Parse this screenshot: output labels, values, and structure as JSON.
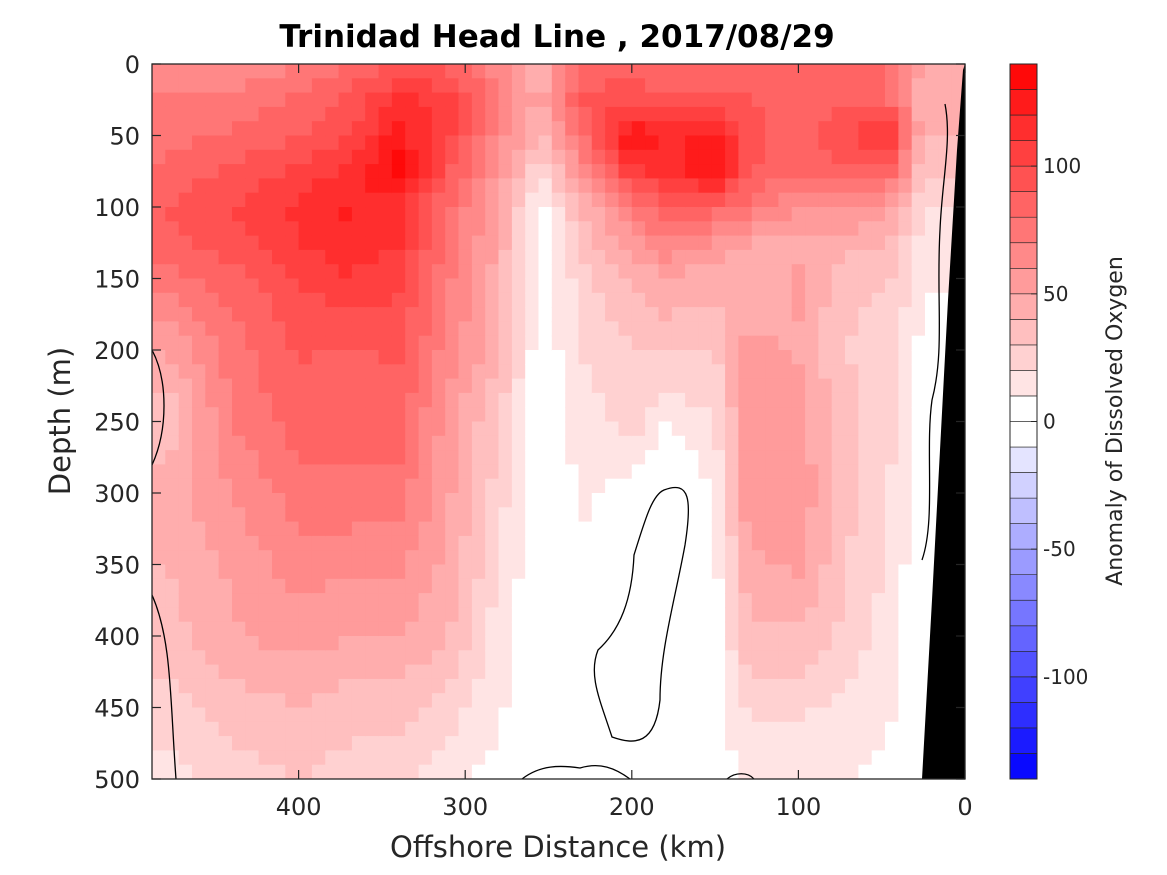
{
  "chart_data": {
    "type": "heatmap",
    "title": "Trinidad Head Line , 2017/08/29",
    "xlabel": "Offshore Distance (km)",
    "ylabel": "Depth (m)",
    "colorbar_label": "Anomaly of Dissolved Oxygen",
    "xlim": [
      488,
      0
    ],
    "ylim": [
      500,
      0
    ],
    "x_ticks": [
      400,
      300,
      200,
      100,
      0
    ],
    "y_ticks": [
      0,
      50,
      100,
      150,
      200,
      250,
      300,
      350,
      400,
      450,
      500
    ],
    "colorbar_range": [
      -140,
      140
    ],
    "colorbar_step": 10,
    "colorbar_ticks": [
      100,
      50,
      0,
      -50,
      -100
    ],
    "colormap": {
      "negative_max": "#0000ff",
      "zero": "#ffffff",
      "positive_max": "#ff0000"
    },
    "land_color": "#000000",
    "zero_contour_color": "#000000",
    "x_km": [
      480,
      440,
      400,
      370,
      340,
      310,
      280,
      255,
      230,
      200,
      180,
      150,
      130,
      100,
      70,
      45,
      25
    ],
    "depth_m": [
      0,
      25,
      50,
      75,
      100,
      125,
      150,
      200,
      250,
      300,
      350,
      400,
      450,
      500
    ],
    "anomaly": [
      [
        60,
        62,
        70,
        80,
        92,
        88,
        65,
        42,
        80,
        85,
        80,
        80,
        82,
        80,
        80,
        80,
        50
      ],
      [
        70,
        72,
        82,
        92,
        112,
        105,
        72,
        45,
        92,
        98,
        92,
        90,
        90,
        82,
        88,
        82,
        40
      ],
      [
        76,
        82,
        90,
        100,
        125,
        102,
        66,
        38,
        80,
        132,
        118,
        125,
        95,
        85,
        100,
        115,
        40
      ],
      [
        82,
        92,
        102,
        112,
        135,
        92,
        58,
        22,
        60,
        108,
        112,
        132,
        90,
        82,
        88,
        85,
        30
      ],
      [
        90,
        100,
        112,
        122,
        115,
        80,
        50,
        5,
        40,
        72,
        88,
        85,
        78,
        60,
        62,
        52,
        20
      ],
      [
        85,
        95,
        110,
        115,
        110,
        76,
        48,
        5,
        32,
        56,
        68,
        60,
        50,
        48,
        46,
        38,
        15
      ],
      [
        75,
        85,
        100,
        110,
        102,
        72,
        45,
        2,
        26,
        42,
        48,
        45,
        38,
        52,
        32,
        30,
        12
      ],
      [
        50,
        75,
        92,
        88,
        92,
        65,
        42,
        2,
        20,
        30,
        32,
        30,
        55,
        48,
        30,
        25,
        5
      ],
      [
        30,
        70,
        85,
        82,
        85,
        55,
        30,
        2,
        15,
        25,
        10,
        20,
        58,
        55,
        32,
        22,
        2
      ],
      [
        45,
        60,
        75,
        78,
        75,
        52,
        25,
        0,
        12,
        5,
        -5,
        10,
        58,
        58,
        32,
        20,
        0
      ],
      [
        40,
        52,
        65,
        62,
        62,
        48,
        20,
        0,
        8,
        0,
        -5,
        6,
        48,
        52,
        30,
        18,
        0
      ],
      [
        35,
        48,
        55,
        50,
        50,
        40,
        15,
        0,
        5,
        -5,
        -5,
        5,
        38,
        38,
        26,
        15,
        0
      ],
      [
        25,
        35,
        40,
        35,
        35,
        25,
        12,
        0,
        5,
        -5,
        2,
        5,
        22,
        22,
        18,
        12,
        0
      ],
      [
        15,
        25,
        30,
        25,
        22,
        15,
        5,
        -2,
        -2,
        0,
        2,
        2,
        12,
        10,
        10,
        5,
        0
      ]
    ]
  }
}
